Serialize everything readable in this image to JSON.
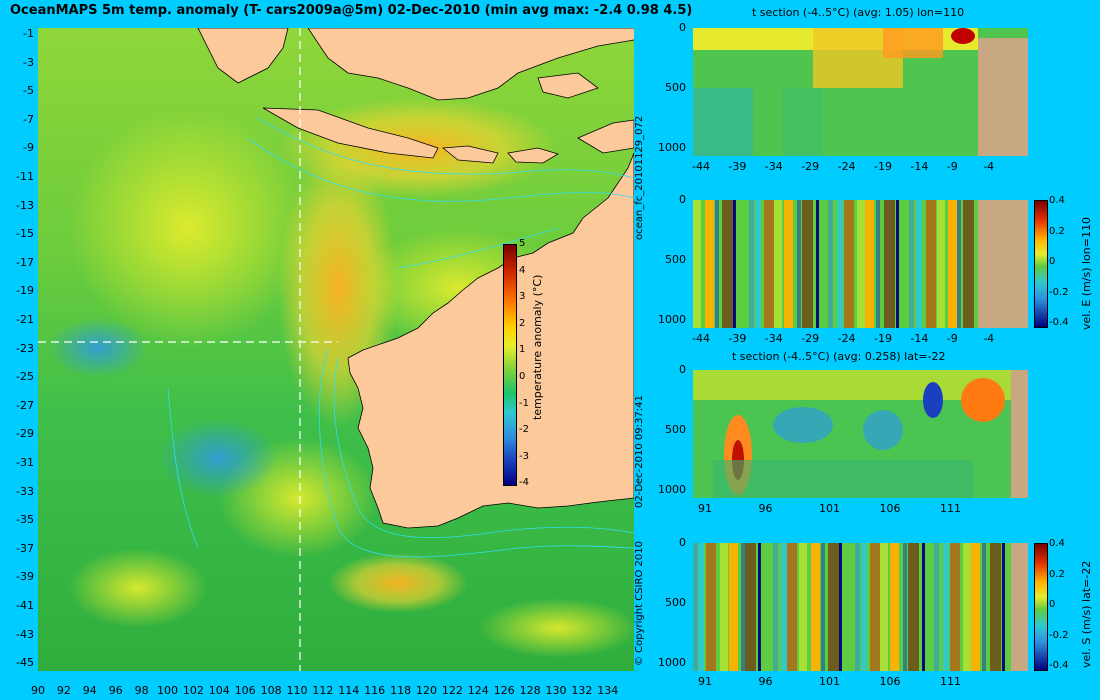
{
  "title": "OceanMAPS 5m temp. anomaly (T- cars2009a@5m) 02-Dec-2010 (min avg max: -2.4 0.98 4.5)",
  "colors": {
    "background": "#00ccff",
    "land": "#fbc99a",
    "land_section": "#c8a882"
  },
  "map": {
    "lat_ticks": [
      "-1",
      "-3",
      "-5",
      "-7",
      "-9",
      "-11",
      "-13",
      "-15",
      "-17",
      "-19",
      "-21",
      "-23",
      "-25",
      "-27",
      "-29",
      "-31",
      "-33",
      "-35",
      "-37",
      "-39",
      "-41",
      "-43",
      "-45"
    ],
    "lon_ticks": [
      "90",
      "92",
      "94",
      "96",
      "98",
      "100",
      "102",
      "104",
      "106",
      "108",
      "110",
      "112",
      "114",
      "116",
      "118",
      "120",
      "122",
      "124",
      "126",
      "128",
      "130",
      "132",
      "134"
    ],
    "colorbar": {
      "label": "temperature anomaly (°C)",
      "ticks": [
        "5",
        "4",
        "3",
        "2",
        "1",
        "0",
        "-1",
        "-2",
        "-3",
        "-4"
      ]
    }
  },
  "side_labels": {
    "copyright": "© Copyright CSIRO 2010",
    "timestamp": "02-Dec-2010 09:37:41",
    "forecast_id": "ocean_fc_20101129_072"
  },
  "sections": [
    {
      "title": "t section (-4..5°C) (avg: 1.05) lon=110",
      "depth_ticks": [
        "0",
        "500",
        "1000"
      ],
      "x_ticks": [
        "-44",
        "-39",
        "-34",
        "-29",
        "-24",
        "-19",
        "-14",
        "-9",
        "-4"
      ]
    },
    {
      "title": "",
      "colorbar_label": "vel. E (m/s) lon=110",
      "cb_ticks": [
        "0.4",
        "0.2",
        "0",
        "-0.2",
        "-0.4"
      ],
      "depth_ticks": [
        "0",
        "500",
        "1000"
      ],
      "x_ticks": [
        "-44",
        "-39",
        "-34",
        "-29",
        "-24",
        "-19",
        "-14",
        "-9",
        "-4"
      ]
    },
    {
      "title": "t section (-4..5°C) (avg: 0.258) lat=-22",
      "depth_ticks": [
        "0",
        "500",
        "1000"
      ],
      "x_ticks": [
        "91",
        "96",
        "101",
        "106",
        "111"
      ]
    },
    {
      "title": "",
      "colorbar_label": "vel. S (m/s) lat=-22",
      "cb_ticks": [
        "0.4",
        "0.2",
        "0",
        "-0.2",
        "-0.4"
      ],
      "depth_ticks": [
        "0",
        "500",
        "1000"
      ],
      "x_ticks": [
        "91",
        "96",
        "101",
        "106",
        "111"
      ]
    }
  ]
}
